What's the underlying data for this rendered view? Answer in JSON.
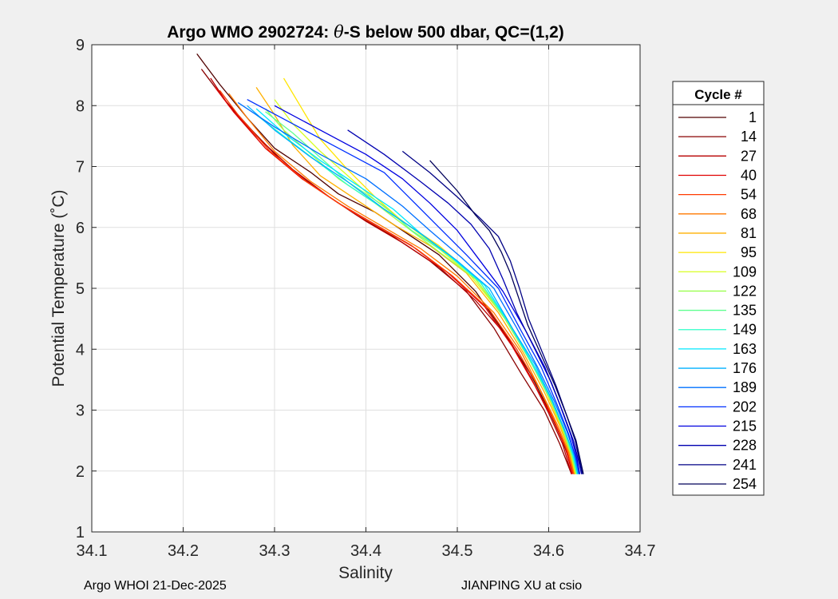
{
  "chart_data": {
    "type": "line",
    "title": "Argo WMO 2902724: θ-S below 500 dbar,  QC=(1,2)",
    "title_parts": {
      "prefix": "Argo WMO 2902724: ",
      "theta": "θ",
      "suffix": "-S below 500 dbar,  QC=(1,2)"
    },
    "xlabel": "Salinity",
    "ylabel": "Potential Temperature (˚C)",
    "xlim": [
      34.1,
      34.7
    ],
    "ylim": [
      1,
      9
    ],
    "xticks": [
      "34.1",
      "34.2",
      "34.3",
      "34.4",
      "34.5",
      "34.6",
      "34.7"
    ],
    "yticks": [
      "1",
      "2",
      "3",
      "4",
      "5",
      "6",
      "7",
      "8",
      "9"
    ],
    "grid": true,
    "legend_title": "Cycle #",
    "legend_position": "outside-right",
    "legend": [
      {
        "label": "1",
        "color": "#500000"
      },
      {
        "label": "14",
        "color": "#8a0000"
      },
      {
        "label": "27",
        "color": "#b80000"
      },
      {
        "label": "40",
        "color": "#e00000"
      },
      {
        "label": "54",
        "color": "#ff3a00"
      },
      {
        "label": "68",
        "color": "#ff7a00"
      },
      {
        "label": "81",
        "color": "#ffb000"
      },
      {
        "label": "95",
        "color": "#ffe600"
      },
      {
        "label": "109",
        "color": "#d8ff20"
      },
      {
        "label": "122",
        "color": "#9cff50"
      },
      {
        "label": "135",
        "color": "#60ff90"
      },
      {
        "label": "149",
        "color": "#2effc8"
      },
      {
        "label": "163",
        "color": "#00e8ff"
      },
      {
        "label": "176",
        "color": "#00b0ff"
      },
      {
        "label": "189",
        "color": "#0070ff"
      },
      {
        "label": "202",
        "color": "#0030ff"
      },
      {
        "label": "215",
        "color": "#0000e0"
      },
      {
        "label": "228",
        "color": "#0000b0"
      },
      {
        "label": "241",
        "color": "#000085"
      },
      {
        "label": "254",
        "color": "#00005a"
      }
    ],
    "series": [
      {
        "name": "1",
        "color": "#500000",
        "x": [
          34.215,
          34.24,
          34.27,
          34.3,
          34.34,
          34.37,
          34.41,
          34.44,
          34.48,
          34.52,
          34.55,
          34.58,
          34.6,
          34.615,
          34.628
        ],
        "y": [
          8.85,
          8.35,
          7.8,
          7.3,
          6.9,
          6.55,
          6.25,
          5.95,
          5.55,
          4.95,
          4.3,
          3.6,
          3.0,
          2.5,
          1.95
        ]
      },
      {
        "name": "14",
        "color": "#8a0000",
        "x": [
          34.22,
          34.245,
          34.275,
          34.31,
          34.35,
          34.39,
          34.43,
          34.47,
          34.51,
          34.54,
          34.57,
          34.595,
          34.612,
          34.625
        ],
        "y": [
          8.6,
          8.1,
          7.6,
          7.05,
          6.6,
          6.2,
          5.85,
          5.45,
          4.95,
          4.35,
          3.6,
          3.0,
          2.45,
          1.95
        ]
      },
      {
        "name": "27",
        "color": "#b80000",
        "x": [
          34.23,
          34.25,
          34.28,
          34.32,
          34.36,
          34.4,
          34.44,
          34.48,
          34.52,
          34.555,
          34.58,
          34.6,
          34.615,
          34.625
        ],
        "y": [
          8.45,
          8.0,
          7.5,
          6.95,
          6.5,
          6.1,
          5.75,
          5.35,
          4.8,
          4.2,
          3.55,
          2.95,
          2.45,
          1.95
        ]
      },
      {
        "name": "40",
        "color": "#e00000",
        "x": [
          34.235,
          34.255,
          34.29,
          34.33,
          34.37,
          34.41,
          34.45,
          34.49,
          34.53,
          34.56,
          34.585,
          34.605,
          34.618,
          34.626
        ],
        "y": [
          8.3,
          7.9,
          7.3,
          6.8,
          6.4,
          6.05,
          5.7,
          5.25,
          4.7,
          4.05,
          3.4,
          2.85,
          2.4,
          1.95
        ]
      },
      {
        "name": "54",
        "color": "#ff3a00",
        "x": [
          34.24,
          34.26,
          34.295,
          34.335,
          34.375,
          34.415,
          34.455,
          34.495,
          34.535,
          34.565,
          34.59,
          34.607,
          34.62,
          34.627
        ],
        "y": [
          8.25,
          7.85,
          7.25,
          6.75,
          6.35,
          6.0,
          5.65,
          5.2,
          4.65,
          4.0,
          3.35,
          2.8,
          2.35,
          1.95
        ]
      },
      {
        "name": "68",
        "color": "#ff7a00",
        "x": [
          34.25,
          34.27,
          34.3,
          34.34,
          34.38,
          34.42,
          34.46,
          34.5,
          34.54,
          34.57,
          34.592,
          34.61,
          34.622,
          34.628
        ],
        "y": [
          8.2,
          7.8,
          7.25,
          6.75,
          6.35,
          6.0,
          5.65,
          5.2,
          4.6,
          3.95,
          3.3,
          2.75,
          2.3,
          1.95
        ]
      },
      {
        "name": "81",
        "color": "#ffb000",
        "x": [
          34.28,
          34.3,
          34.32,
          34.35,
          34.39,
          34.43,
          34.47,
          34.51,
          34.545,
          34.572,
          34.595,
          34.612,
          34.623,
          34.629
        ],
        "y": [
          8.3,
          7.85,
          7.35,
          6.85,
          6.45,
          6.05,
          5.7,
          5.25,
          4.6,
          3.95,
          3.3,
          2.75,
          2.3,
          1.95
        ]
      },
      {
        "name": "95",
        "color": "#ffe600",
        "x": [
          34.31,
          34.33,
          34.35,
          34.38,
          34.41,
          34.44,
          34.48,
          34.515,
          34.548,
          34.575,
          34.597,
          34.613,
          34.624,
          34.629
        ],
        "y": [
          8.45,
          7.95,
          7.45,
          6.95,
          6.5,
          6.1,
          5.7,
          5.25,
          4.6,
          3.95,
          3.3,
          2.75,
          2.3,
          1.95
        ]
      },
      {
        "name": "109",
        "color": "#d8ff20",
        "x": [
          34.3,
          34.32,
          34.35,
          34.38,
          34.41,
          34.445,
          34.48,
          34.515,
          34.55,
          34.577,
          34.598,
          34.614,
          34.625,
          34.63
        ],
        "y": [
          8.1,
          7.7,
          7.25,
          6.85,
          6.45,
          6.05,
          5.65,
          5.2,
          4.55,
          3.9,
          3.3,
          2.75,
          2.3,
          1.95
        ]
      },
      {
        "name": "122",
        "color": "#9cff50",
        "x": [
          34.29,
          34.31,
          34.34,
          34.37,
          34.41,
          34.445,
          34.48,
          34.52,
          34.552,
          34.578,
          34.6,
          34.615,
          34.625,
          34.63
        ],
        "y": [
          7.95,
          7.6,
          7.2,
          6.8,
          6.4,
          6.0,
          5.6,
          5.15,
          4.5,
          3.85,
          3.25,
          2.7,
          2.25,
          1.95
        ]
      },
      {
        "name": "135",
        "color": "#60ff90",
        "x": [
          34.29,
          34.32,
          34.35,
          34.38,
          34.42,
          34.45,
          34.49,
          34.525,
          34.555,
          34.58,
          34.601,
          34.616,
          34.626,
          34.631
        ],
        "y": [
          7.9,
          7.55,
          7.15,
          6.75,
          6.35,
          5.95,
          5.55,
          5.1,
          4.45,
          3.8,
          3.2,
          2.7,
          2.25,
          1.95
        ]
      },
      {
        "name": "149",
        "color": "#2effc8",
        "x": [
          34.28,
          34.31,
          34.345,
          34.38,
          34.42,
          34.455,
          34.49,
          34.525,
          34.556,
          34.581,
          34.602,
          34.617,
          34.627,
          34.631
        ],
        "y": [
          7.85,
          7.5,
          7.1,
          6.7,
          6.3,
          5.95,
          5.55,
          5.1,
          4.45,
          3.8,
          3.2,
          2.7,
          2.25,
          1.95
        ]
      },
      {
        "name": "163",
        "color": "#00e8ff",
        "x": [
          34.28,
          34.31,
          34.35,
          34.39,
          34.43,
          34.46,
          34.495,
          34.53,
          34.558,
          34.583,
          34.603,
          34.618,
          34.627,
          34.632
        ],
        "y": [
          7.95,
          7.55,
          7.1,
          6.7,
          6.3,
          5.9,
          5.5,
          5.05,
          4.4,
          3.75,
          3.2,
          2.65,
          2.25,
          1.95
        ]
      },
      {
        "name": "176",
        "color": "#00b0ff",
        "x": [
          34.27,
          34.3,
          34.34,
          34.38,
          34.42,
          34.46,
          34.5,
          34.535,
          34.56,
          34.585,
          34.604,
          34.618,
          34.628,
          34.632
        ],
        "y": [
          8.0,
          7.6,
          7.15,
          6.75,
          6.3,
          5.9,
          5.45,
          5.0,
          4.35,
          3.75,
          3.15,
          2.65,
          2.25,
          1.95
        ]
      },
      {
        "name": "189",
        "color": "#0070ff",
        "x": [
          34.26,
          34.3,
          34.35,
          34.4,
          34.44,
          34.47,
          34.505,
          34.54,
          34.565,
          34.588,
          34.606,
          34.62,
          34.629,
          34.633
        ],
        "y": [
          8.05,
          7.65,
          7.2,
          6.8,
          6.35,
          5.95,
          5.5,
          5.0,
          4.35,
          3.7,
          3.15,
          2.65,
          2.25,
          1.95
        ]
      },
      {
        "name": "202",
        "color": "#0030ff",
        "x": [
          34.27,
          34.32,
          34.37,
          34.42,
          34.45,
          34.48,
          34.51,
          34.545,
          34.57,
          34.592,
          34.609,
          34.622,
          34.63,
          34.634
        ],
        "y": [
          8.1,
          7.7,
          7.3,
          6.9,
          6.45,
          6.0,
          5.55,
          5.0,
          4.3,
          3.7,
          3.1,
          2.6,
          2.2,
          1.95
        ]
      },
      {
        "name": "215",
        "color": "#0000e0",
        "x": [
          34.3,
          34.35,
          34.4,
          34.44,
          34.47,
          34.5,
          34.525,
          34.55,
          34.575,
          34.596,
          34.612,
          34.624,
          34.631,
          34.634
        ],
        "y": [
          8.0,
          7.6,
          7.2,
          6.8,
          6.4,
          5.95,
          5.45,
          4.95,
          4.3,
          3.7,
          3.1,
          2.6,
          2.2,
          1.95
        ]
      },
      {
        "name": "228",
        "color": "#0000b0",
        "x": [
          34.38,
          34.42,
          34.46,
          34.49,
          34.515,
          34.535,
          34.55,
          34.565,
          34.585,
          34.603,
          34.616,
          34.627,
          34.633,
          34.636
        ],
        "y": [
          7.6,
          7.2,
          6.75,
          6.4,
          6.05,
          5.65,
          5.15,
          4.6,
          4.0,
          3.45,
          2.95,
          2.5,
          2.15,
          1.95
        ]
      },
      {
        "name": "241",
        "color": "#000085",
        "x": [
          34.44,
          34.47,
          34.5,
          34.525,
          34.545,
          34.558,
          34.568,
          34.578,
          34.593,
          34.608,
          34.62,
          34.629,
          34.634,
          34.637
        ],
        "y": [
          7.25,
          6.9,
          6.5,
          6.15,
          5.85,
          5.45,
          5.0,
          4.5,
          3.95,
          3.4,
          2.9,
          2.5,
          2.15,
          1.95
        ]
      },
      {
        "name": "254",
        "color": "#00005a",
        "x": [
          34.47,
          34.5,
          34.52,
          34.535,
          34.548,
          34.558,
          34.567,
          34.577,
          34.592,
          34.607,
          34.62,
          34.63,
          34.635,
          34.638
        ],
        "y": [
          7.1,
          6.6,
          6.2,
          5.95,
          5.6,
          5.25,
          4.85,
          4.4,
          3.9,
          3.4,
          2.9,
          2.5,
          2.15,
          1.95
        ]
      }
    ]
  },
  "footer": {
    "left": "Argo WHOI 21-Dec-2025",
    "right": "JIANPING XU at csio"
  }
}
